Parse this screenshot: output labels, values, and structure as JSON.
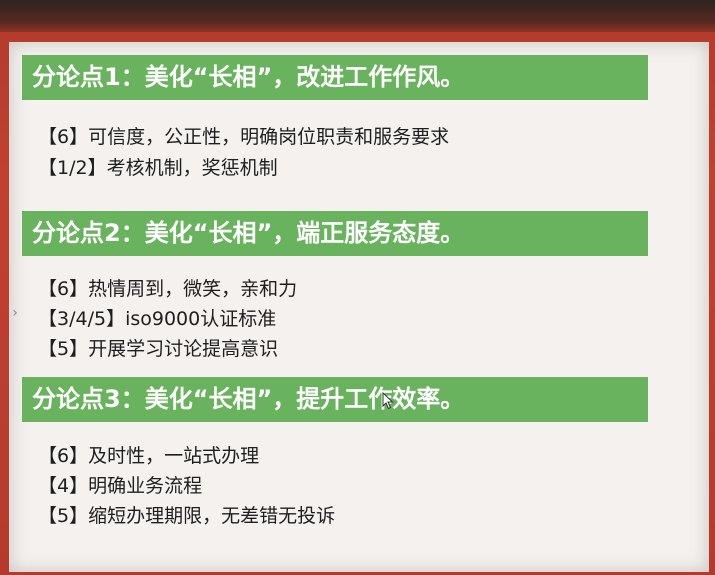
{
  "sections": [
    {
      "heading": "分论点1：美化“长相”，改进工作作风。",
      "items": [
        "【6】可信度，公正性，明确岗位职责和服务要求",
        "【1/2】考核机制，奖惩机制"
      ]
    },
    {
      "heading": "分论点2：美化“长相”，端正服务态度。",
      "items": [
        "【6】热情周到，微笑，亲和力",
        "【3/4/5】iso9000认证标准",
        "【5】开展学习讨论提高意识"
      ]
    },
    {
      "heading": "分论点3：美化“长相”，提升工作效率。",
      "items": [
        "【6】及时性，一站式办理",
        "【4】明确业务流程",
        "【5】缩短办理期限，无差错无投诉"
      ]
    }
  ],
  "colors": {
    "header_green": "#6ab35e",
    "frame_red": "#b63a2c",
    "slide_bg": "#f4f1ef"
  },
  "icons": {
    "side_handle": "chevron-right-icon",
    "cursor": "mouse-pointer-icon"
  }
}
